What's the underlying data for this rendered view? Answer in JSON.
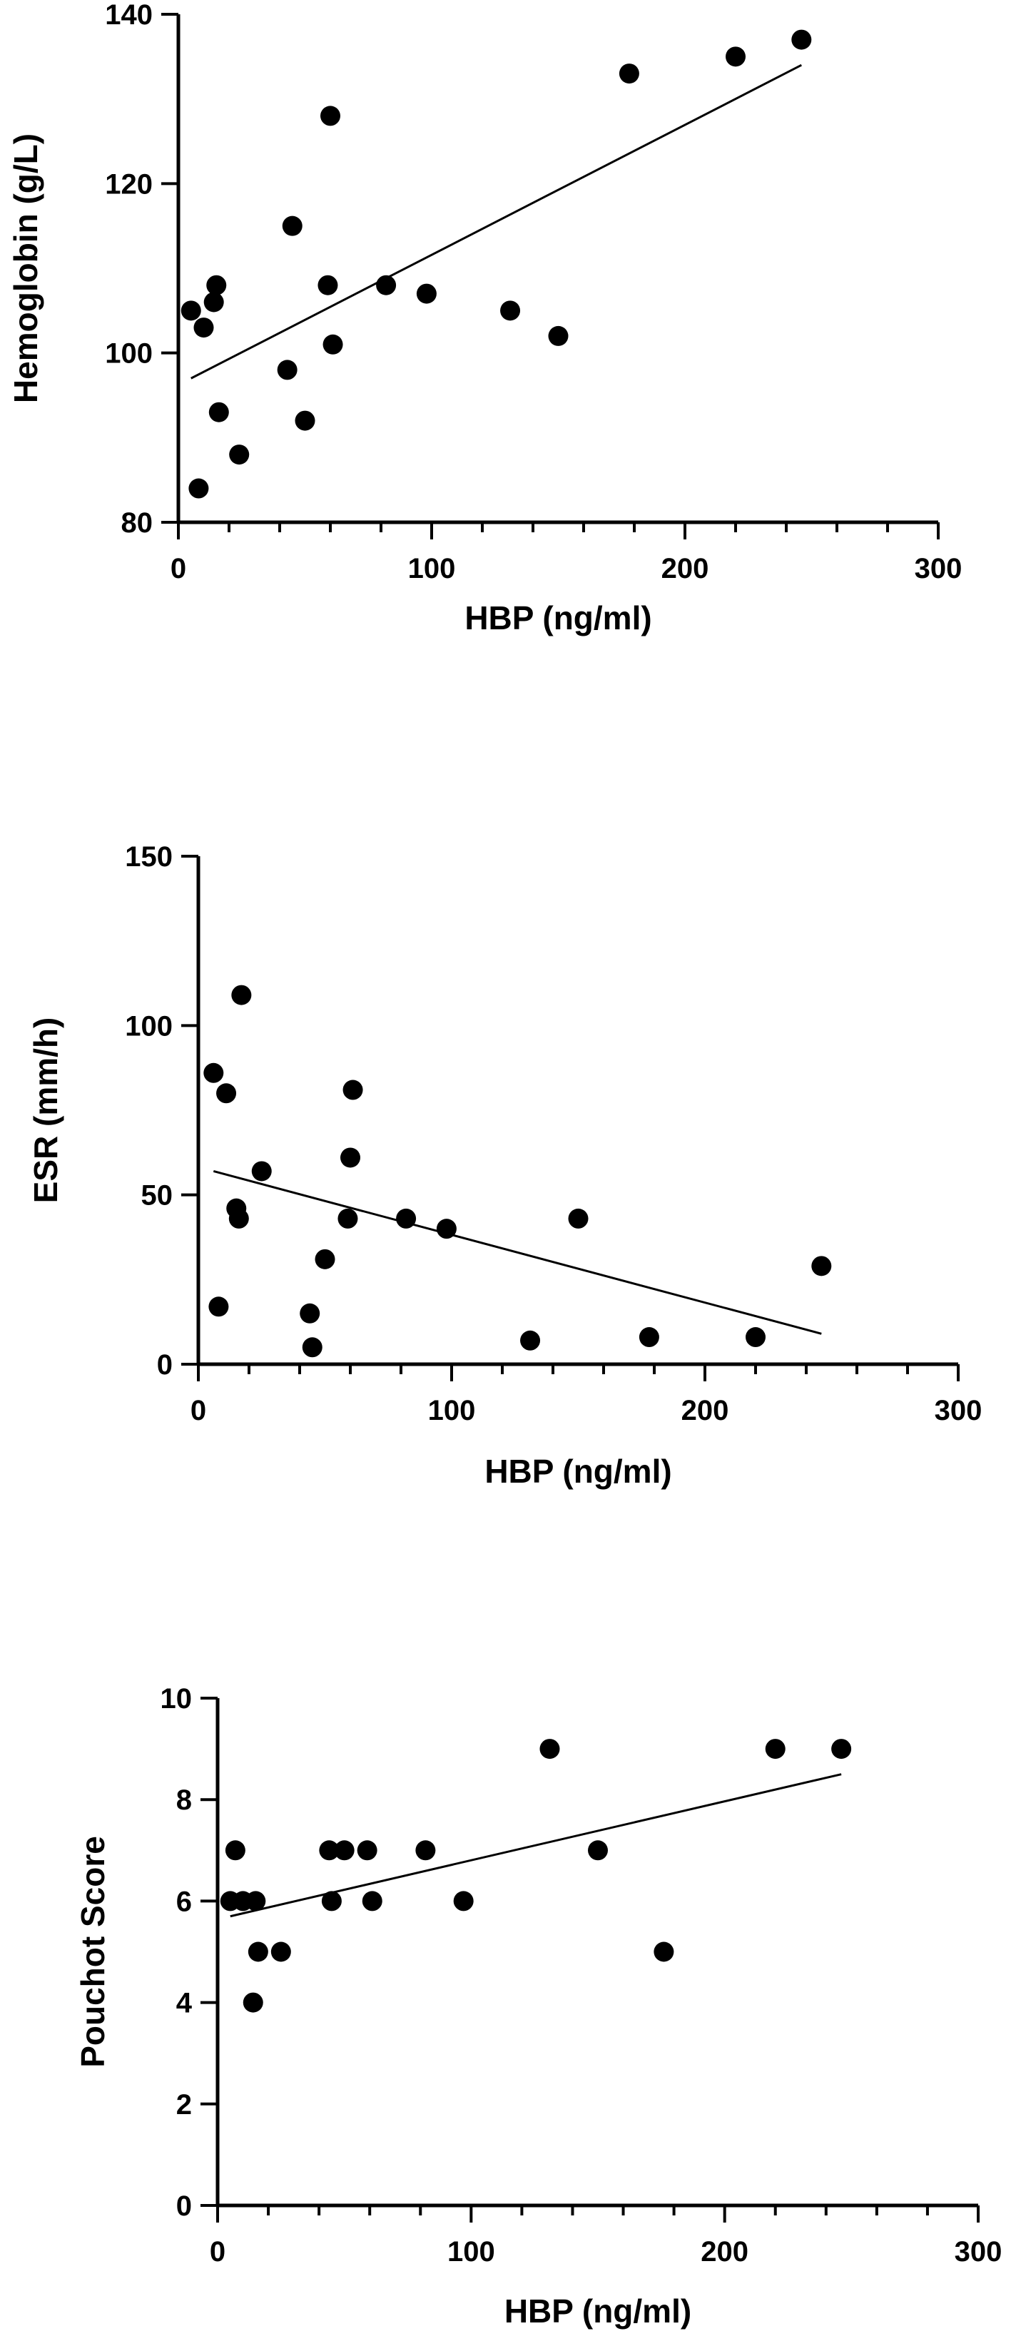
{
  "chart_data": [
    {
      "type": "scatter",
      "xlabel": "HBP (ng/ml)",
      "ylabel": "Hemoglobin (g/L)",
      "xlim": [
        0,
        300
      ],
      "ylim": [
        80,
        140
      ],
      "xticks": [
        0,
        100,
        200,
        300
      ],
      "yticks": [
        80,
        100,
        120,
        140
      ],
      "xtick_labels": [
        "0",
        "100",
        "200",
        "300"
      ],
      "ytick_labels": [
        "80",
        "100",
        "120",
        "140"
      ],
      "grid": false,
      "legend": "none",
      "points": [
        {
          "x": 5,
          "y": 105
        },
        {
          "x": 8,
          "y": 84
        },
        {
          "x": 10,
          "y": 103
        },
        {
          "x": 14,
          "y": 106
        },
        {
          "x": 15,
          "y": 108
        },
        {
          "x": 16,
          "y": 93
        },
        {
          "x": 24,
          "y": 88
        },
        {
          "x": 43,
          "y": 98
        },
        {
          "x": 45,
          "y": 115
        },
        {
          "x": 50,
          "y": 92
        },
        {
          "x": 59,
          "y": 108
        },
        {
          "x": 60,
          "y": 128
        },
        {
          "x": 61,
          "y": 101
        },
        {
          "x": 82,
          "y": 108
        },
        {
          "x": 98,
          "y": 107
        },
        {
          "x": 131,
          "y": 105
        },
        {
          "x": 150,
          "y": 102
        },
        {
          "x": 178,
          "y": 133
        },
        {
          "x": 220,
          "y": 135
        },
        {
          "x": 246,
          "y": 137
        }
      ],
      "trendline": {
        "x": [
          5,
          246
        ],
        "y": [
          97,
          134
        ]
      }
    },
    {
      "type": "scatter",
      "xlabel": "HBP (ng/ml)",
      "ylabel": "ESR (mm/h)",
      "xlim": [
        0,
        300
      ],
      "ylim": [
        0,
        150
      ],
      "xticks": [
        0,
        100,
        200,
        300
      ],
      "yticks": [
        0,
        50,
        100,
        150
      ],
      "xtick_labels": [
        "0",
        "100",
        "200",
        "300"
      ],
      "ytick_labels": [
        "0",
        "50",
        "100",
        "150"
      ],
      "grid": false,
      "legend": "none",
      "points": [
        {
          "x": 6,
          "y": 86
        },
        {
          "x": 8,
          "y": 17
        },
        {
          "x": 11,
          "y": 80
        },
        {
          "x": 15,
          "y": 46
        },
        {
          "x": 16,
          "y": 43
        },
        {
          "x": 17,
          "y": 109
        },
        {
          "x": 25,
          "y": 57
        },
        {
          "x": 44,
          "y": 15
        },
        {
          "x": 45,
          "y": 5
        },
        {
          "x": 50,
          "y": 31
        },
        {
          "x": 59,
          "y": 43
        },
        {
          "x": 60,
          "y": 61
        },
        {
          "x": 61,
          "y": 81
        },
        {
          "x": 82,
          "y": 43
        },
        {
          "x": 98,
          "y": 40
        },
        {
          "x": 131,
          "y": 7
        },
        {
          "x": 150,
          "y": 43
        },
        {
          "x": 178,
          "y": 8
        },
        {
          "x": 220,
          "y": 8
        },
        {
          "x": 246,
          "y": 29
        }
      ],
      "trendline": {
        "x": [
          6,
          246
        ],
        "y": [
          57,
          9
        ]
      }
    },
    {
      "type": "scatter",
      "xlabel": "HBP (ng/ml)",
      "ylabel": "Pouchot Score",
      "xlim": [
        0,
        300
      ],
      "ylim": [
        0,
        10
      ],
      "xticks": [
        0,
        100,
        200,
        300
      ],
      "yticks": [
        0,
        2,
        4,
        6,
        8,
        10
      ],
      "xtick_labels": [
        "0",
        "100",
        "200",
        "300"
      ],
      "ytick_labels": [
        "0",
        "2",
        "4",
        "6",
        "8",
        "10"
      ],
      "grid": false,
      "legend": "none",
      "points": [
        {
          "x": 5,
          "y": 6
        },
        {
          "x": 7,
          "y": 7
        },
        {
          "x": 10,
          "y": 6
        },
        {
          "x": 14,
          "y": 4
        },
        {
          "x": 15,
          "y": 6
        },
        {
          "x": 16,
          "y": 5
        },
        {
          "x": 25,
          "y": 5
        },
        {
          "x": 44,
          "y": 7
        },
        {
          "x": 45,
          "y": 6
        },
        {
          "x": 50,
          "y": 7
        },
        {
          "x": 59,
          "y": 7
        },
        {
          "x": 61,
          "y": 6
        },
        {
          "x": 82,
          "y": 7
        },
        {
          "x": 97,
          "y": 6
        },
        {
          "x": 131,
          "y": 9
        },
        {
          "x": 150,
          "y": 7
        },
        {
          "x": 176,
          "y": 5
        },
        {
          "x": 220,
          "y": 9
        },
        {
          "x": 246,
          "y": 9
        }
      ],
      "trendline": {
        "x": [
          5,
          246
        ],
        "y": [
          5.7,
          8.5
        ]
      }
    }
  ]
}
